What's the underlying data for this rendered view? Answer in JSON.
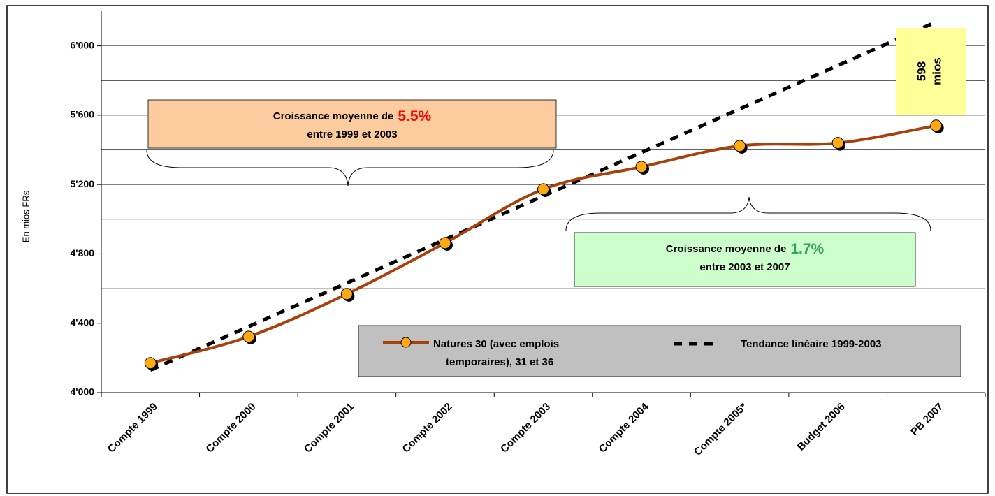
{
  "chart_data": {
    "type": "line",
    "y_label": "En mios FRs",
    "categories": [
      "Compte 1999",
      "Compte 2000",
      "Compte 2001",
      "Compte 2002",
      "Compte 2003",
      "Compte 2004",
      "Compte 2005*",
      "Budget 2006",
      "PB 2007"
    ],
    "series": [
      {
        "name": "Natures 30 (avec emplois temporaires), 31 et 36",
        "color": "#a8400c",
        "marker_color": "#ffaa11",
        "style": "solid",
        "values": [
          4170,
          4323,
          4569,
          4863,
          5173,
          5302,
          5423,
          5440,
          5540
        ]
      },
      {
        "name": "Tendance linéaire 1999-2003",
        "color": "#000000",
        "style": "dashed",
        "values": [
          4130,
          4381,
          4632,
          4883,
          5134,
          5385,
          5636,
          5887,
          6138
        ]
      }
    ],
    "ylim": [
      4000,
      6200
    ],
    "yticks": [
      {
        "value": 4000,
        "label": "4'000"
      },
      {
        "value": 4400,
        "label": "4'400"
      },
      {
        "value": 4800,
        "label": "4'800"
      },
      {
        "value": 5200,
        "label": "5'200"
      },
      {
        "value": 5600,
        "label": "5'600"
      },
      {
        "value": 6000,
        "label": "6'000"
      }
    ],
    "minor_grid": [
      4200,
      4600,
      5000,
      5400,
      5800
    ],
    "grid": true,
    "legend": "bottom-right",
    "annotations": [
      {
        "line1": "Croissance moyenne de",
        "highlight": "5.5%",
        "line2": "entre 1999 et 2003",
        "color": "#fccb9e",
        "highlight_color": "#ff0000"
      },
      {
        "line1": "Croissance moyenne de",
        "highlight": "1.7%",
        "line2": "entre 2003 et 2007",
        "color": "#ccffcc",
        "highlight_color": "#33a060"
      }
    ],
    "callout": {
      "line1": "598",
      "line2": "mios",
      "color": "#ffff99"
    }
  }
}
